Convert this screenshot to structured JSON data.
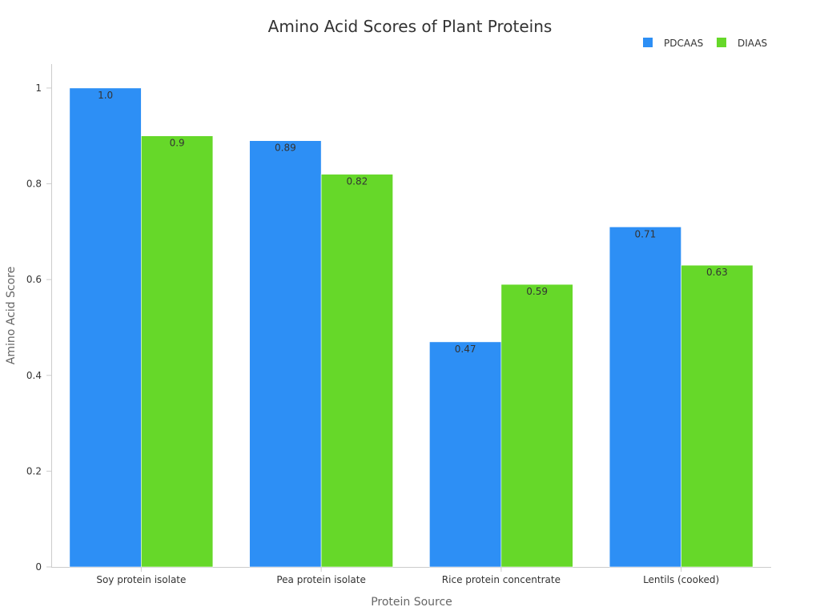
{
  "chart_data": {
    "type": "bar",
    "title": "Amino Acid Scores of Plant Proteins",
    "xlabel": "Protein Source",
    "ylabel": "Amino Acid Score",
    "categories": [
      "Soy protein isolate",
      "Pea protein isolate",
      "Rice protein concentrate",
      "Lentils (cooked)"
    ],
    "series": [
      {
        "name": "PDCAAS",
        "color": "#2d8ff5",
        "values": [
          1.0,
          0.89,
          0.47,
          0.71
        ],
        "labels": [
          "1.0",
          "0.89",
          "0.47",
          "0.71"
        ]
      },
      {
        "name": "DIAAS",
        "color": "#66d829",
        "values": [
          0.9,
          0.82,
          0.59,
          0.63
        ],
        "labels": [
          "0.9",
          "0.82",
          "0.59",
          "0.63"
        ]
      }
    ],
    "ylim": [
      0,
      1.05
    ],
    "yticks": [
      0,
      0.2,
      0.4,
      0.6,
      0.8,
      1
    ],
    "ytick_labels": [
      "0",
      "0.2",
      "0.4",
      "0.6",
      "0.8",
      "1"
    ],
    "legend_position": "top-right",
    "grid": false
  }
}
